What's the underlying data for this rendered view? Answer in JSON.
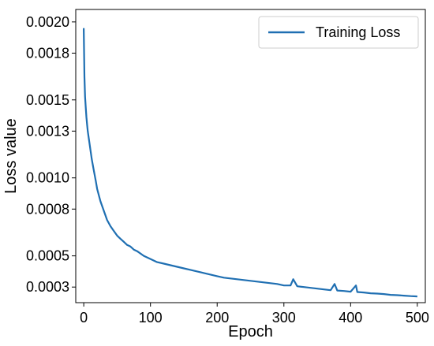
{
  "chart_data": {
    "type": "line",
    "title": "",
    "xlabel": "Epoch",
    "ylabel": "Loss value",
    "xlim": [
      -12,
      512
    ],
    "ylim": [
      0.0002,
      0.00208
    ],
    "xticks": [
      0,
      100,
      200,
      300,
      400,
      500
    ],
    "xtick_labels": [
      "0",
      "100",
      "200",
      "300",
      "400",
      "500"
    ],
    "yticks": [
      0.0003,
      0.0005,
      0.0008,
      0.001,
      0.0013,
      0.0015,
      0.0018,
      0.002
    ],
    "ytick_labels": [
      "0.0003",
      "0.0005",
      "0.0008",
      "0.0010",
      "0.0013",
      "0.0015",
      "0.0018",
      "0.0020"
    ],
    "grid": false,
    "legend_position": "top-right",
    "series": [
      {
        "name": "Training Loss",
        "color": "#1f6fb2",
        "x": [
          0,
          1,
          2,
          3,
          4,
          5,
          6,
          8,
          10,
          12,
          15,
          18,
          20,
          25,
          30,
          35,
          40,
          45,
          50,
          55,
          60,
          65,
          70,
          75,
          80,
          90,
          100,
          110,
          120,
          130,
          140,
          150,
          160,
          170,
          180,
          190,
          200,
          210,
          220,
          230,
          240,
          250,
          260,
          270,
          280,
          290,
          300,
          310,
          314,
          320,
          330,
          340,
          350,
          360,
          370,
          376,
          380,
          390,
          400,
          408,
          410,
          420,
          430,
          440,
          450,
          460,
          470,
          480,
          490,
          500
        ],
        "values": [
          0.00196,
          0.00165,
          0.00152,
          0.00145,
          0.00139,
          0.00134,
          0.0013,
          0.00124,
          0.00118,
          0.00112,
          0.00105,
          0.00098,
          0.00093,
          0.00085,
          0.00079,
          0.00073,
          0.00069,
          0.00066,
          0.00063,
          0.00061,
          0.00059,
          0.00057,
          0.00056,
          0.00054,
          0.00053,
          0.0005,
          0.00048,
          0.00046,
          0.00045,
          0.00044,
          0.00043,
          0.00042,
          0.00041,
          0.0004,
          0.00039,
          0.00038,
          0.00037,
          0.00036,
          0.000355,
          0.00035,
          0.000345,
          0.00034,
          0.000335,
          0.00033,
          0.000325,
          0.00032,
          0.00031,
          0.00031,
          0.00035,
          0.000305,
          0.0003,
          0.000295,
          0.00029,
          0.000285,
          0.00028,
          0.00032,
          0.000278,
          0.000275,
          0.00027,
          0.00031,
          0.000268,
          0.000265,
          0.00026,
          0.000258,
          0.000255,
          0.00025,
          0.000248,
          0.000245,
          0.000242,
          0.00024
        ]
      }
    ]
  }
}
